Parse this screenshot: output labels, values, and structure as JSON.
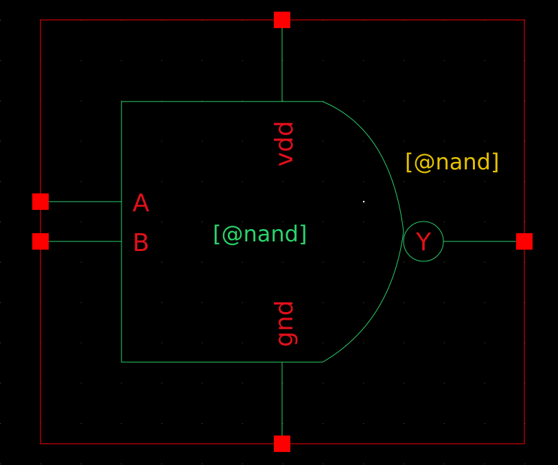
{
  "symbol": {
    "instance_label": "[@nand]",
    "cell_label": "[@nand]",
    "pins": {
      "a": "A",
      "b": "B",
      "y": "Y",
      "vdd": "vdd",
      "gnd": "gnd"
    }
  },
  "colors": {
    "background": "#000000",
    "grid_dot": "#5a5a5a",
    "bounding_box": "#ff0000",
    "pin_marker": "#ff0000",
    "shape": "#2bd36a",
    "pin_text": "#e0101a",
    "instance_text": "#2bd36a",
    "cell_text": "#e6c200"
  }
}
